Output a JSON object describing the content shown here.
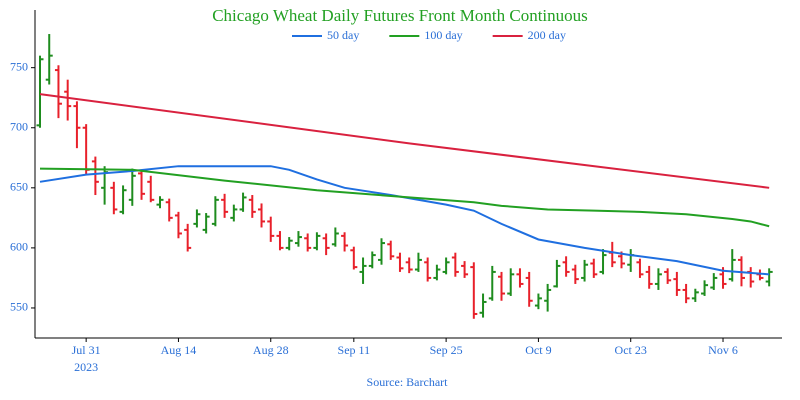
{
  "chart_data": {
    "type": "ohlc",
    "title": "Chicago Wheat Daily Futures Front Month Continuous",
    "source": "Source: Barchart",
    "x": [
      "2023-07-24",
      "2023-07-25",
      "2023-07-26",
      "2023-07-27",
      "2023-07-28",
      "2023-07-31",
      "2023-08-01",
      "2023-08-02",
      "2023-08-03",
      "2023-08-04",
      "2023-08-07",
      "2023-08-08",
      "2023-08-09",
      "2023-08-10",
      "2023-08-11",
      "2023-08-14",
      "2023-08-15",
      "2023-08-16",
      "2023-08-17",
      "2023-08-18",
      "2023-08-21",
      "2023-08-22",
      "2023-08-23",
      "2023-08-24",
      "2023-08-25",
      "2023-08-28",
      "2023-08-29",
      "2023-08-30",
      "2023-08-31",
      "2023-09-01",
      "2023-09-05",
      "2023-09-06",
      "2023-09-07",
      "2023-09-08",
      "2023-09-11",
      "2023-09-12",
      "2023-09-13",
      "2023-09-14",
      "2023-09-15",
      "2023-09-18",
      "2023-09-19",
      "2023-09-20",
      "2023-09-21",
      "2023-09-22",
      "2023-09-25",
      "2023-09-26",
      "2023-09-27",
      "2023-09-28",
      "2023-09-29",
      "2023-10-02",
      "2023-10-03",
      "2023-10-04",
      "2023-10-05",
      "2023-10-06",
      "2023-10-09",
      "2023-10-10",
      "2023-10-11",
      "2023-10-12",
      "2023-10-13",
      "2023-10-16",
      "2023-10-17",
      "2023-10-18",
      "2023-10-19",
      "2023-10-20",
      "2023-10-23",
      "2023-10-24",
      "2023-10-25",
      "2023-10-26",
      "2023-10-27",
      "2023-10-30",
      "2023-10-31",
      "2023-11-01",
      "2023-11-02",
      "2023-11-03",
      "2023-11-06",
      "2023-11-07",
      "2023-11-08",
      "2023-11-09",
      "2023-11-10",
      "2023-11-13"
    ],
    "open": [
      702,
      740,
      748,
      730,
      718,
      700,
      672,
      650,
      650,
      630,
      640,
      662,
      655,
      636,
      638,
      627,
      615,
      620,
      615,
      620,
      640,
      625,
      632,
      640,
      632,
      622,
      610,
      600,
      604,
      608,
      600,
      608,
      603,
      610,
      598,
      580,
      585,
      590,
      603,
      592,
      588,
      582,
      588,
      575,
      580,
      592,
      585,
      584,
      546,
      558,
      576,
      562,
      578,
      575,
      552,
      556,
      568,
      588,
      582,
      575,
      587,
      580,
      596,
      593,
      586,
      588,
      580,
      570,
      580,
      574,
      565,
      558,
      562,
      567,
      578,
      574,
      590,
      580,
      578,
      572
    ],
    "high": [
      760,
      778,
      752,
      740,
      722,
      703,
      676,
      668,
      655,
      652,
      666,
      665,
      660,
      643,
      641,
      630,
      620,
      632,
      629,
      643,
      645,
      636,
      646,
      644,
      637,
      626,
      614,
      609,
      614,
      612,
      613,
      612,
      617,
      613,
      601,
      592,
      597,
      608,
      606,
      596,
      592,
      596,
      592,
      586,
      592,
      596,
      589,
      588,
      562,
      585,
      580,
      583,
      583,
      580,
      562,
      570,
      590,
      593,
      586,
      590,
      591,
      599,
      605,
      597,
      599,
      591,
      585,
      583,
      583,
      580,
      570,
      566,
      573,
      579,
      584,
      599,
      593,
      584,
      582,
      583
    ],
    "low": [
      700,
      736,
      708,
      706,
      683,
      661,
      644,
      636,
      628,
      628,
      635,
      640,
      638,
      633,
      622,
      608,
      597,
      617,
      612,
      618,
      625,
      622,
      630,
      625,
      617,
      605,
      598,
      598,
      601,
      597,
      598,
      594,
      601,
      597,
      582,
      570,
      583,
      586,
      590,
      580,
      579,
      580,
      572,
      573,
      578,
      576,
      575,
      541,
      542,
      556,
      556,
      560,
      567,
      551,
      549,
      547,
      567,
      576,
      570,
      572,
      575,
      578,
      584,
      583,
      580,
      575,
      566,
      565,
      570,
      560,
      554,
      555,
      560,
      565,
      566,
      572,
      568,
      567,
      573,
      568
    ],
    "close": [
      757,
      760,
      720,
      718,
      700,
      665,
      655,
      663,
      632,
      648,
      660,
      645,
      640,
      640,
      625,
      612,
      600,
      628,
      626,
      640,
      630,
      632,
      642,
      630,
      622,
      610,
      600,
      606,
      609,
      600,
      610,
      600,
      612,
      602,
      584,
      585,
      594,
      604,
      593,
      583,
      582,
      590,
      575,
      582,
      588,
      580,
      578,
      545,
      555,
      580,
      562,
      578,
      570,
      556,
      558,
      565,
      585,
      580,
      574,
      586,
      578,
      594,
      588,
      587,
      594,
      578,
      570,
      578,
      573,
      565,
      558,
      563,
      569,
      575,
      570,
      590,
      575,
      572,
      575,
      580
    ],
    "up_color": "#1e8c1e",
    "down_color": "#e8202a",
    "series": [
      {
        "name": "50 day",
        "color": "#1f6fe0",
        "x": [
          "2023-07-24",
          "2023-07-31",
          "2023-08-07",
          "2023-08-14",
          "2023-08-21",
          "2023-08-28",
          "2023-08-30",
          "2023-09-05",
          "2023-09-08",
          "2023-09-15",
          "2023-09-25",
          "2023-09-28",
          "2023-10-03",
          "2023-10-09",
          "2023-10-16",
          "2023-10-23",
          "2023-10-30",
          "2023-11-06",
          "2023-11-13"
        ],
        "values": [
          655,
          661,
          664,
          668,
          668,
          668,
          665,
          657,
          650,
          644,
          636,
          631,
          620,
          607,
          600,
          594,
          589,
          581,
          578
        ]
      },
      {
        "name": "100 day",
        "color": "#22a022",
        "x": [
          "2023-07-24",
          "2023-08-07",
          "2023-08-21",
          "2023-09-05",
          "2023-09-19",
          "2023-09-28",
          "2023-10-03",
          "2023-10-10",
          "2023-10-17",
          "2023-10-24",
          "2023-10-31",
          "2023-11-07",
          "2023-11-09",
          "2023-11-13"
        ],
        "values": [
          666,
          665,
          656,
          648,
          642,
          638,
          635,
          632,
          631,
          630,
          628,
          624,
          622,
          618
        ]
      },
      {
        "name": "200 day",
        "color": "#d9213f",
        "x": [
          "2023-07-24",
          "2023-09-19",
          "2023-11-13"
        ],
        "values": [
          728,
          687,
          650
        ]
      }
    ],
    "ylim": [
      525,
      798
    ],
    "yticks": [
      550,
      600,
      650,
      700,
      750
    ],
    "xticks": [
      {
        "value": "2023-07-31",
        "label": "Jul 31"
      },
      {
        "value": "2023-08-14",
        "label": "Aug 14"
      },
      {
        "value": "2023-08-28",
        "label": "Aug 28"
      },
      {
        "value": "2023-09-11",
        "label": "Sep 11"
      },
      {
        "value": "2023-09-25",
        "label": "Sep 25"
      },
      {
        "value": "2023-10-09",
        "label": "Oct 9"
      },
      {
        "value": "2023-10-23",
        "label": "Oct 23"
      },
      {
        "value": "2023-11-06",
        "label": "Nov 6"
      }
    ],
    "x_year_label": "2023",
    "legend": "top"
  }
}
